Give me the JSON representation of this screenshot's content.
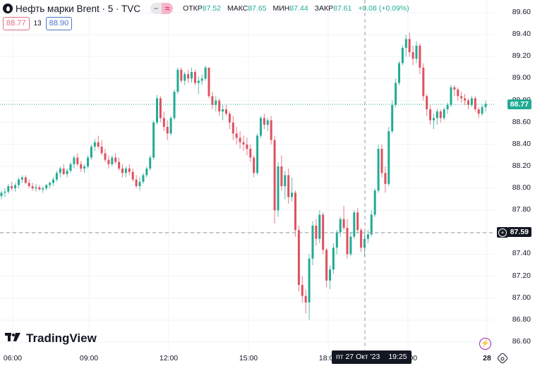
{
  "header": {
    "symbol_title": "Нефть марки Brent · 5 · TVC",
    "toggle_minus": "−",
    "toggle_eq": "≈",
    "ohlc": {
      "open_label": "ОТКР",
      "open": "87.52",
      "high_label": "МАКС",
      "high": "87.65",
      "low_label": "МИН",
      "low": "87.44",
      "close_label": "ЗАКР",
      "close": "87.61",
      "change": "+0.08 (+0.09%)"
    },
    "bid": "88.77",
    "spread": "13",
    "ask": "88.90"
  },
  "y_axis": {
    "labels": [
      "89.60",
      "89.40",
      "89.20",
      "89.00",
      "88.80",
      "88.60",
      "88.40",
      "88.20",
      "88.00",
      "87.80",
      "87.60",
      "87.40",
      "87.20",
      "87.00",
      "86.80",
      "86.60"
    ]
  },
  "x_axis": {
    "labels": [
      "06:00",
      "09:00",
      "12:00",
      "15:00",
      "18:00",
      "21:00",
      "28"
    ]
  },
  "last_price_tag": "88.77",
  "crosshair": {
    "price": "87.59",
    "time_date": "пт 27 Окт '23",
    "time": "19:25"
  },
  "logo": {
    "mark": "TV",
    "text": "TradingView"
  },
  "colors": {
    "up": "#22ab94",
    "down": "#e0505f",
    "grid": "#f0f3fa",
    "last": "#22ab94",
    "crosshair": "#131722"
  },
  "chart_data": {
    "type": "candlestick",
    "title": "Нефть марки Brent · 5 · TVC",
    "interval": "5m",
    "ylim": [
      86.55,
      89.65
    ],
    "x_ticks": [
      "06:00",
      "09:00",
      "12:00",
      "15:00",
      "18:00",
      "21:00",
      "28"
    ],
    "y_ticks": [
      86.6,
      86.8,
      87.0,
      87.2,
      87.4,
      87.6,
      87.8,
      88.0,
      88.2,
      88.4,
      88.6,
      88.8,
      89.0,
      89.2,
      89.4,
      89.6
    ],
    "last_price": 88.77,
    "crosshair_price": 87.59,
    "ohlc": [
      [
        87.93,
        87.98,
        87.9,
        87.96
      ],
      [
        87.96,
        88.0,
        87.92,
        87.97
      ],
      [
        87.97,
        88.04,
        87.95,
        88.02
      ],
      [
        88.02,
        88.06,
        87.98,
        88.0
      ],
      [
        88.0,
        88.05,
        87.97,
        88.03
      ],
      [
        88.03,
        88.1,
        88.0,
        88.08
      ],
      [
        88.08,
        88.12,
        88.05,
        88.1
      ],
      [
        88.1,
        88.12,
        88.04,
        88.05
      ],
      [
        88.05,
        88.08,
        88.0,
        88.02
      ],
      [
        88.02,
        88.05,
        87.98,
        88.0
      ],
      [
        88.0,
        88.04,
        87.97,
        88.01
      ],
      [
        88.01,
        88.03,
        87.98,
        87.99
      ],
      [
        87.99,
        88.02,
        87.96,
        88.0
      ],
      [
        88.0,
        88.04,
        87.98,
        88.03
      ],
      [
        88.03,
        88.06,
        88.0,
        88.05
      ],
      [
        88.05,
        88.1,
        88.02,
        88.08
      ],
      [
        88.08,
        88.16,
        88.06,
        88.14
      ],
      [
        88.14,
        88.2,
        88.1,
        88.18
      ],
      [
        88.18,
        88.22,
        88.12,
        88.13
      ],
      [
        88.13,
        88.18,
        88.1,
        88.16
      ],
      [
        88.16,
        88.24,
        88.14,
        88.22
      ],
      [
        88.22,
        88.3,
        88.18,
        88.28
      ],
      [
        88.28,
        88.32,
        88.2,
        88.22
      ],
      [
        88.22,
        88.25,
        88.15,
        88.18
      ],
      [
        88.18,
        88.22,
        88.14,
        88.2
      ],
      [
        88.2,
        88.3,
        88.18,
        88.28
      ],
      [
        88.28,
        88.4,
        88.26,
        88.38
      ],
      [
        88.38,
        88.45,
        88.34,
        88.42
      ],
      [
        88.42,
        88.48,
        88.36,
        88.38
      ],
      [
        88.38,
        88.44,
        88.3,
        88.32
      ],
      [
        88.32,
        88.36,
        88.24,
        88.26
      ],
      [
        88.26,
        88.3,
        88.18,
        88.22
      ],
      [
        88.22,
        88.3,
        88.2,
        88.28
      ],
      [
        88.28,
        88.32,
        88.22,
        88.24
      ],
      [
        88.24,
        88.28,
        88.16,
        88.18
      ],
      [
        88.18,
        88.22,
        88.1,
        88.14
      ],
      [
        88.14,
        88.2,
        88.1,
        88.18
      ],
      [
        88.18,
        88.22,
        88.12,
        88.15
      ],
      [
        88.15,
        88.18,
        88.06,
        88.08
      ],
      [
        88.08,
        88.12,
        88.0,
        88.02
      ],
      [
        88.02,
        88.1,
        87.98,
        88.06
      ],
      [
        88.06,
        88.14,
        88.04,
        88.12
      ],
      [
        88.12,
        88.2,
        88.1,
        88.18
      ],
      [
        88.18,
        88.3,
        88.16,
        88.28
      ],
      [
        88.28,
        88.62,
        88.26,
        88.6
      ],
      [
        88.6,
        88.85,
        88.58,
        88.82
      ],
      [
        88.82,
        88.84,
        88.6,
        88.64
      ],
      [
        88.64,
        88.7,
        88.52,
        88.56
      ],
      [
        88.56,
        88.62,
        88.44,
        88.5
      ],
      [
        88.5,
        88.66,
        88.48,
        88.64
      ],
      [
        88.64,
        88.9,
        88.62,
        88.88
      ],
      [
        88.88,
        89.1,
        88.86,
        89.08
      ],
      [
        89.08,
        89.1,
        88.96,
        88.98
      ],
      [
        88.98,
        89.06,
        88.94,
        89.04
      ],
      [
        89.04,
        89.08,
        88.96,
        89.0
      ],
      [
        89.0,
        89.1,
        88.96,
        89.06
      ],
      [
        89.06,
        89.08,
        88.94,
        88.96
      ],
      [
        88.96,
        89.02,
        88.86,
        88.98
      ],
      [
        88.98,
        89.04,
        88.94,
        89.0
      ],
      [
        89.0,
        89.12,
        88.98,
        89.1
      ],
      [
        89.1,
        89.1,
        88.82,
        88.84
      ],
      [
        88.84,
        88.88,
        88.72,
        88.76
      ],
      [
        88.76,
        88.84,
        88.7,
        88.8
      ],
      [
        88.8,
        88.82,
        88.66,
        88.7
      ],
      [
        88.7,
        88.76,
        88.62,
        88.72
      ],
      [
        88.72,
        88.76,
        88.66,
        88.68
      ],
      [
        88.68,
        88.7,
        88.54,
        88.6
      ],
      [
        88.6,
        88.66,
        88.44,
        88.5
      ],
      [
        88.5,
        88.56,
        88.4,
        88.46
      ],
      [
        88.46,
        88.52,
        88.36,
        88.42
      ],
      [
        88.42,
        88.48,
        88.34,
        88.4
      ],
      [
        88.4,
        88.46,
        88.3,
        88.36
      ],
      [
        88.36,
        88.4,
        88.24,
        88.28
      ],
      [
        88.28,
        88.3,
        88.1,
        88.14
      ],
      [
        88.14,
        88.5,
        88.12,
        88.48
      ],
      [
        88.48,
        88.66,
        88.46,
        88.64
      ],
      [
        88.64,
        88.68,
        88.54,
        88.58
      ],
      [
        88.58,
        88.64,
        88.52,
        88.62
      ],
      [
        88.62,
        88.66,
        88.4,
        88.44
      ],
      [
        88.44,
        88.48,
        87.68,
        87.8
      ],
      [
        87.8,
        88.24,
        87.74,
        88.2
      ],
      [
        88.2,
        88.3,
        87.98,
        88.02
      ],
      [
        88.02,
        88.16,
        87.9,
        88.12
      ],
      [
        88.12,
        88.18,
        87.86,
        87.92
      ],
      [
        87.92,
        88.1,
        87.88,
        87.96
      ],
      [
        87.96,
        87.98,
        87.56,
        87.62
      ],
      [
        87.62,
        87.66,
        87.06,
        87.12
      ],
      [
        87.12,
        87.2,
        86.96,
        87.02
      ],
      [
        87.02,
        87.08,
        86.86,
        86.96
      ],
      [
        86.96,
        87.4,
        86.8,
        87.36
      ],
      [
        87.36,
        87.7,
        87.3,
        87.66
      ],
      [
        87.66,
        87.72,
        87.48,
        87.54
      ],
      [
        87.54,
        87.8,
        87.5,
        87.76
      ],
      [
        87.76,
        87.78,
        87.4,
        87.44
      ],
      [
        87.44,
        87.46,
        87.1,
        87.16
      ],
      [
        87.16,
        87.3,
        87.08,
        87.26
      ],
      [
        87.26,
        87.5,
        87.22,
        87.46
      ],
      [
        87.46,
        87.62,
        87.4,
        87.6
      ],
      [
        87.6,
        87.74,
        87.56,
        87.72
      ],
      [
        87.72,
        87.84,
        87.62,
        87.64
      ],
      [
        87.64,
        87.72,
        87.36,
        87.4
      ],
      [
        87.4,
        87.6,
        87.38,
        87.56
      ],
      [
        87.56,
        87.8,
        87.54,
        87.78
      ],
      [
        87.78,
        87.82,
        87.6,
        87.62
      ],
      [
        87.62,
        87.64,
        87.42,
        87.46
      ],
      [
        87.46,
        87.6,
        87.38,
        87.54
      ],
      [
        87.54,
        87.62,
        87.5,
        87.58
      ],
      [
        87.58,
        87.8,
        87.56,
        87.76
      ],
      [
        87.76,
        88.0,
        87.74,
        87.98
      ],
      [
        87.98,
        88.4,
        87.96,
        88.36
      ],
      [
        88.36,
        88.4,
        88.1,
        88.14
      ],
      [
        88.14,
        88.2,
        87.96,
        88.04
      ],
      [
        88.04,
        88.56,
        88.02,
        88.52
      ],
      [
        88.52,
        88.8,
        88.5,
        88.76
      ],
      [
        88.76,
        89.0,
        88.74,
        88.96
      ],
      [
        88.96,
        89.16,
        88.94,
        89.14
      ],
      [
        89.14,
        89.3,
        89.12,
        89.28
      ],
      [
        89.28,
        89.4,
        89.2,
        89.36
      ],
      [
        89.36,
        89.42,
        89.2,
        89.24
      ],
      [
        89.24,
        89.3,
        89.12,
        89.18
      ],
      [
        89.18,
        89.34,
        89.14,
        89.3
      ],
      [
        89.3,
        89.32,
        89.04,
        89.1
      ],
      [
        89.1,
        89.14,
        88.8,
        88.84
      ],
      [
        88.84,
        88.86,
        88.66,
        88.72
      ],
      [
        88.72,
        88.76,
        88.58,
        88.62
      ],
      [
        88.62,
        88.68,
        88.54,
        88.64
      ],
      [
        88.64,
        88.72,
        88.58,
        88.7
      ],
      [
        88.7,
        88.72,
        88.6,
        88.64
      ],
      [
        88.64,
        88.74,
        88.62,
        88.72
      ],
      [
        88.72,
        88.78,
        88.68,
        88.76
      ],
      [
        88.76,
        88.94,
        88.74,
        88.92
      ],
      [
        88.92,
        88.94,
        88.84,
        88.9
      ],
      [
        88.9,
        88.92,
        88.8,
        88.84
      ],
      [
        88.84,
        88.88,
        88.78,
        88.82
      ],
      [
        88.82,
        88.86,
        88.76,
        88.8
      ],
      [
        88.8,
        88.82,
        88.72,
        88.76
      ],
      [
        88.76,
        88.84,
        88.74,
        88.82
      ],
      [
        88.82,
        88.84,
        88.7,
        88.72
      ],
      [
        88.72,
        88.74,
        88.64,
        88.68
      ],
      [
        88.68,
        88.76,
        88.66,
        88.74
      ],
      [
        88.74,
        88.8,
        88.7,
        88.77
      ]
    ]
  }
}
